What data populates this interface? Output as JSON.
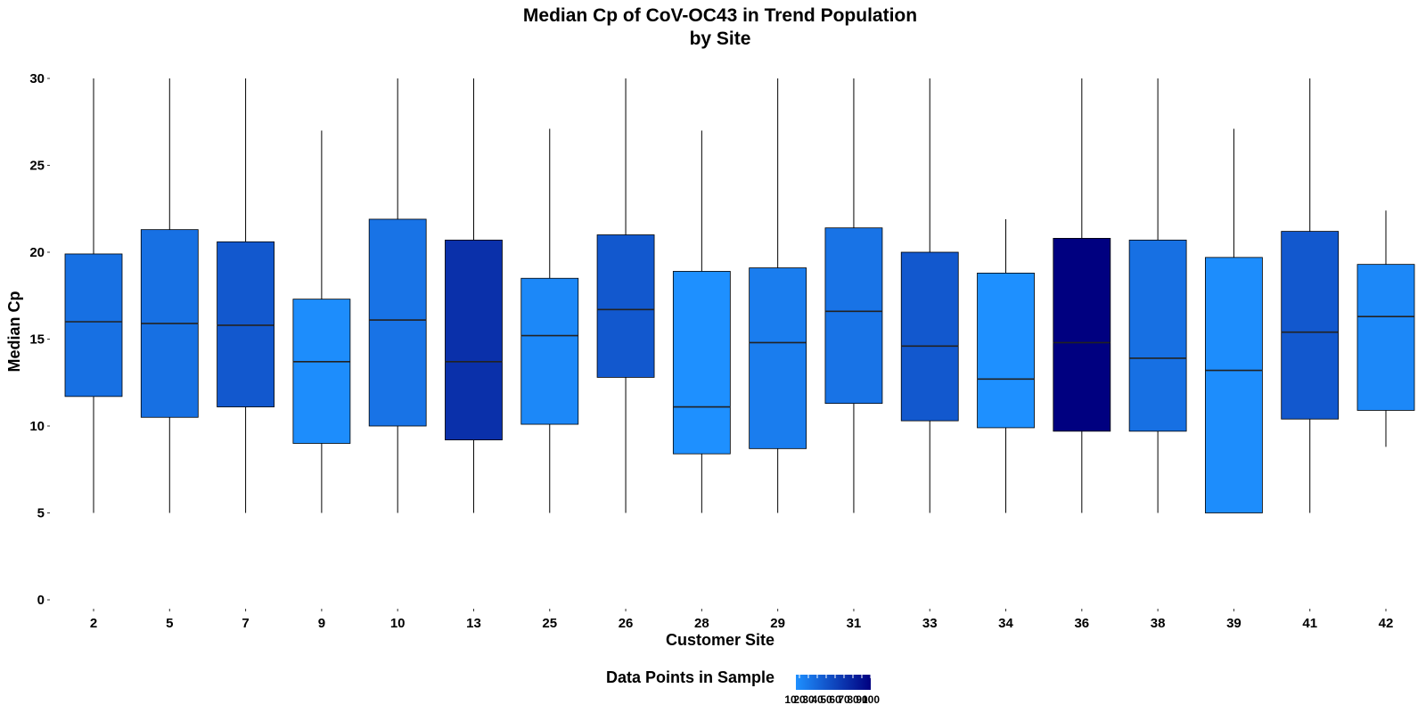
{
  "chart_data": {
    "type": "box",
    "title_line1": "Median Cp of CoV-OC43 in Trend Population",
    "title_line2": "by Site",
    "xlabel": "Customer Site",
    "ylabel": "Median Cp",
    "ylim": [
      0,
      30
    ],
    "y_ticks": [
      0,
      5,
      10,
      15,
      20,
      25,
      30
    ],
    "grid": false,
    "legend": {
      "title": "Data Points in Sample",
      "position": "bottom",
      "tick_labels": [
        "10",
        "20",
        "30",
        "40",
        "50",
        "60",
        "70",
        "80",
        "90",
        "100"
      ],
      "color_low": "#1E90FF",
      "color_high": "#000080"
    },
    "boxes": [
      {
        "site": "2",
        "whisker_low": 5.0,
        "q1": 11.7,
        "median": 16.0,
        "q3": 19.9,
        "whisker_high": 30.0,
        "count": 30
      },
      {
        "site": "5",
        "whisker_low": 5.0,
        "q1": 10.5,
        "median": 15.9,
        "q3": 21.3,
        "whisker_high": 30.0,
        "count": 30
      },
      {
        "site": "7",
        "whisker_low": 5.0,
        "q1": 11.1,
        "median": 15.8,
        "q3": 20.6,
        "whisker_high": 30.0,
        "count": 45
      },
      {
        "site": "9",
        "whisker_low": 5.0,
        "q1": 9.0,
        "median": 13.7,
        "q3": 17.3,
        "whisker_high": 27.0,
        "count": 12
      },
      {
        "site": "10",
        "whisker_low": 5.0,
        "q1": 10.0,
        "median": 16.1,
        "q3": 21.9,
        "whisker_high": 30.0,
        "count": 28
      },
      {
        "site": "13",
        "whisker_low": 5.0,
        "q1": 9.2,
        "median": 13.7,
        "q3": 20.7,
        "whisker_high": 30.0,
        "count": 70
      },
      {
        "site": "25",
        "whisker_low": 5.0,
        "q1": 10.1,
        "median": 15.2,
        "q3": 18.5,
        "whisker_high": 27.1,
        "count": 15
      },
      {
        "site": "26",
        "whisker_low": 5.0,
        "q1": 12.8,
        "median": 16.7,
        "q3": 21.0,
        "whisker_high": 30.0,
        "count": 45
      },
      {
        "site": "28",
        "whisker_low": 5.0,
        "q1": 8.4,
        "median": 11.1,
        "q3": 18.9,
        "whisker_high": 27.0,
        "count": 10
      },
      {
        "site": "29",
        "whisker_low": 5.0,
        "q1": 8.7,
        "median": 14.8,
        "q3": 19.1,
        "whisker_high": 30.0,
        "count": 22
      },
      {
        "site": "31",
        "whisker_low": 5.0,
        "q1": 11.3,
        "median": 16.6,
        "q3": 21.4,
        "whisker_high": 30.0,
        "count": 28
      },
      {
        "site": "33",
        "whisker_low": 5.0,
        "q1": 10.3,
        "median": 14.6,
        "q3": 20.0,
        "whisker_high": 30.0,
        "count": 45
      },
      {
        "site": "34",
        "whisker_low": 5.0,
        "q1": 9.9,
        "median": 12.7,
        "q3": 18.8,
        "whisker_high": 21.9,
        "count": 10
      },
      {
        "site": "36",
        "whisker_low": 5.0,
        "q1": 9.7,
        "median": 14.8,
        "q3": 20.8,
        "whisker_high": 30.0,
        "count": 100
      },
      {
        "site": "38",
        "whisker_low": 5.0,
        "q1": 9.7,
        "median": 13.9,
        "q3": 20.7,
        "whisker_high": 30.0,
        "count": 30
      },
      {
        "site": "39",
        "whisker_low": 5.0,
        "q1": 5.0,
        "median": 13.2,
        "q3": 19.7,
        "whisker_high": 27.1,
        "count": 12
      },
      {
        "site": "41",
        "whisker_low": 5.0,
        "q1": 10.4,
        "median": 15.4,
        "q3": 21.2,
        "whisker_high": 30.0,
        "count": 45
      },
      {
        "site": "42",
        "whisker_low": 8.8,
        "q1": 10.9,
        "median": 16.3,
        "q3": 19.3,
        "whisker_high": 22.4,
        "count": 15
      }
    ]
  }
}
